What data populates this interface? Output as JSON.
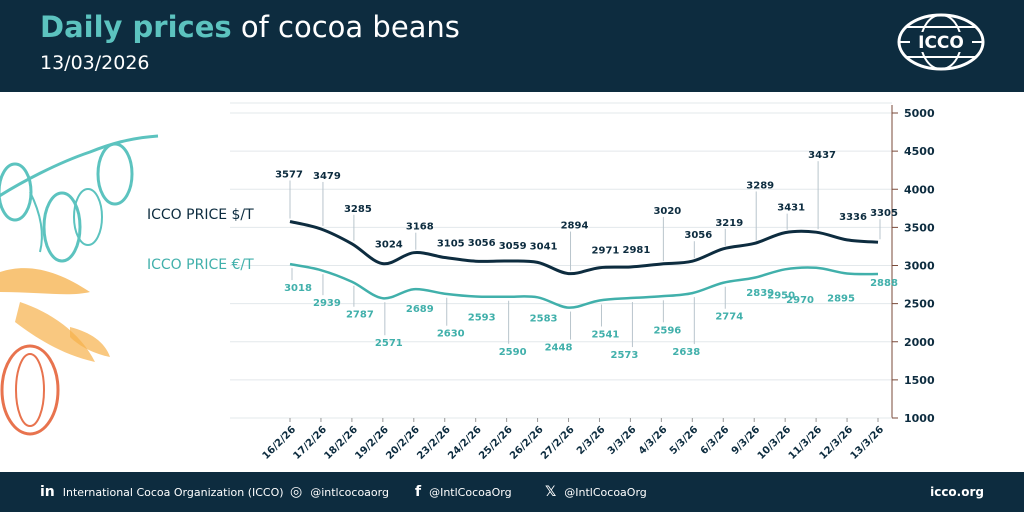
{
  "header": {
    "title_bold": "Daily prices",
    "title_rest": " of cocoa beans",
    "date": "13/03/2026",
    "logo_text": "ICCO"
  },
  "footer": {
    "linkedin_icon": "in",
    "linkedin": "International Cocoa Organization (ICCO)",
    "instagram_icon": "◎",
    "instagram": "@intlcocoaorg",
    "facebook_icon": "f",
    "facebook": "@IntlCocoaOrg",
    "x_icon": "𝕏",
    "x": "@IntlCocoaOrg",
    "site": "icco.org"
  },
  "colors": {
    "navy": "#0d2c3f",
    "teal": "#41b0ab",
    "grid": "#e3e8eb",
    "axis": "#7a4a3a"
  },
  "chart_data": {
    "type": "line",
    "categories": [
      "16/2/26",
      "17/2/26",
      "18/2/26",
      "19/2/26",
      "20/2/26",
      "23/2/26",
      "24/2/26",
      "25/2/26",
      "26/2/26",
      "27/2/26",
      "2/3/26",
      "3/3/26",
      "4/3/26",
      "5/3/26",
      "6/3/26",
      "9/3/26",
      "10/3/26",
      "11/3/26",
      "12/3/26",
      "13/3/26"
    ],
    "series": [
      {
        "name": "ICCO PRICE $/T",
        "values": [
          3577,
          3479,
          3285,
          3024,
          3168,
          3105,
          3056,
          3059,
          3041,
          2894,
          2971,
          2981,
          3020,
          3056,
          3219,
          3289,
          3431,
          3437,
          3336,
          3305
        ]
      },
      {
        "name": "ICCO PRICE €/T",
        "values": [
          3018,
          2939,
          2787,
          2571,
          2689,
          2630,
          2593,
          2590,
          2583,
          2448,
          2541,
          2573,
          2596,
          2638,
          2774,
          2839,
          2950,
          2970,
          2895,
          2888
        ]
      }
    ],
    "ylim": [
      1000,
      5000
    ],
    "yticks": [
      1000,
      1500,
      2000,
      2500,
      3000,
      3500,
      4000,
      4500,
      5000
    ],
    "grid": true,
    "legend": "left"
  }
}
